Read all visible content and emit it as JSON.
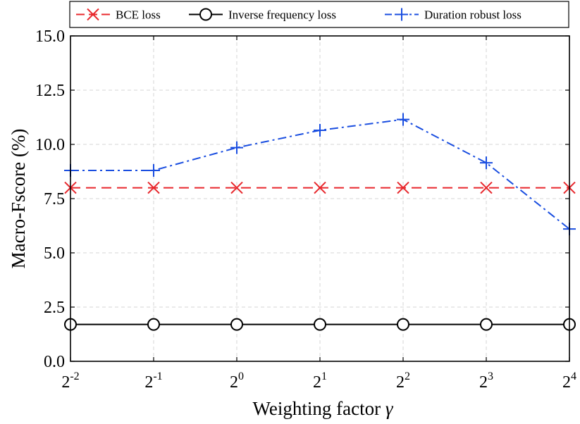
{
  "chart_data": {
    "type": "line",
    "categories": [
      "2^-2",
      "2^-1",
      "2^0",
      "2^1",
      "2^2",
      "2^3",
      "2^4"
    ],
    "x_ticks": [
      {
        "base": "2",
        "exp": "-2"
      },
      {
        "base": "2",
        "exp": "-1"
      },
      {
        "base": "2",
        "exp": "0"
      },
      {
        "base": "2",
        "exp": "1"
      },
      {
        "base": "2",
        "exp": "2"
      },
      {
        "base": "2",
        "exp": "3"
      },
      {
        "base": "2",
        "exp": "4"
      }
    ],
    "xlabel_text": "Weighting factor ",
    "xlabel_symbol": "γ",
    "ylabel": "Macro-Fscore (%)",
    "ylim": [
      0,
      15
    ],
    "y_ticks": [
      "0.0",
      "2.5",
      "5.0",
      "7.5",
      "10.0",
      "12.5",
      "15.0"
    ],
    "y_tick_values": [
      0,
      2.5,
      5,
      7.5,
      10,
      12.5,
      15
    ],
    "grid": true,
    "legend_position": "top",
    "series": [
      {
        "name": "BCE loss",
        "color": "#e8282d",
        "marker": "x",
        "line": "dashed",
        "values": [
          8.0,
          8.0,
          8.0,
          8.0,
          8.0,
          8.0,
          8.0
        ]
      },
      {
        "name": "Inverse frequency loss",
        "color": "#000000",
        "marker": "circle",
        "line": "solid",
        "values": [
          1.7,
          1.7,
          1.7,
          1.7,
          1.7,
          1.7,
          1.7
        ]
      },
      {
        "name": "Duration robust loss",
        "color": "#1a4ee0",
        "marker": "plus",
        "line": "dashdot",
        "values": [
          8.8,
          8.8,
          9.85,
          10.65,
          11.15,
          9.15,
          6.1
        ]
      }
    ]
  }
}
